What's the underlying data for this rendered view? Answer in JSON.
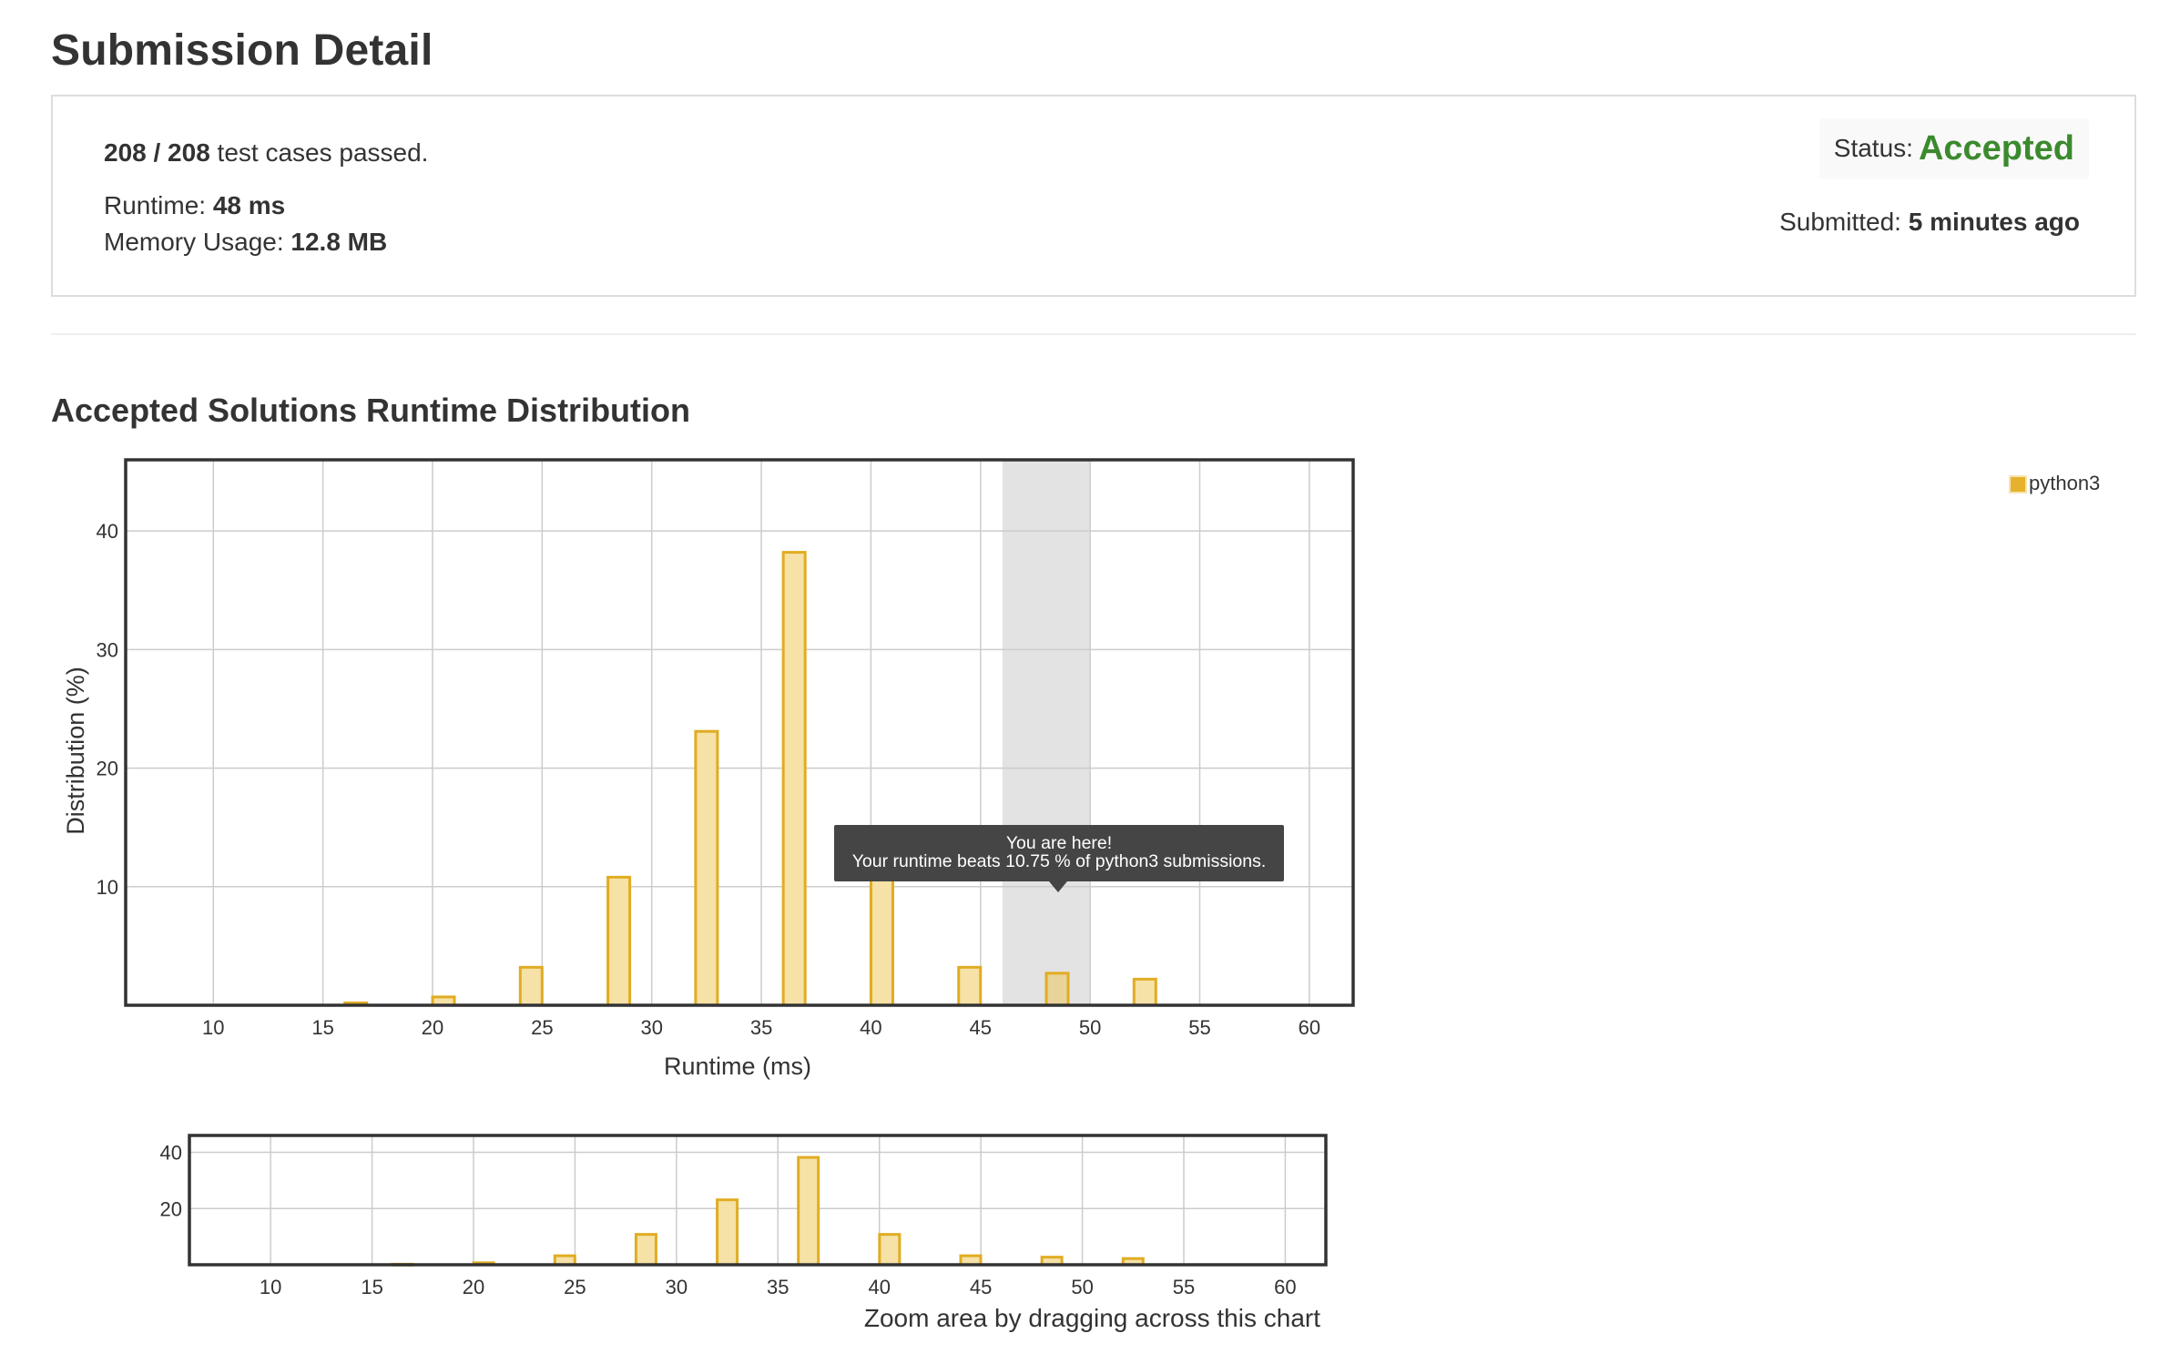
{
  "page": {
    "title": "Submission Detail"
  },
  "detail": {
    "cases_bold": "208 / 208",
    "cases_text": " test cases passed.",
    "runtime_label": "Runtime: ",
    "runtime_value": "48 ms",
    "memory_label": "Memory Usage: ",
    "memory_value": "12.8 MB",
    "status_label": "Status:",
    "status_value": "Accepted",
    "submitted_label": "Submitted: ",
    "submitted_value": "5 minutes ago"
  },
  "section": {
    "title": "Accepted Solutions Runtime Distribution"
  },
  "tooltip": {
    "line1": "You are here!",
    "line2": "Your runtime beats 10.75 % of python3 submissions."
  },
  "zoom_hint": "Zoom area by dragging across this chart",
  "colors": {
    "bar_fill": "#f6e1a6",
    "bar_stroke": "#e0ac22",
    "accepted": "#3b8a2e",
    "highlight": "#e3e3e3"
  },
  "chart_data": [
    {
      "type": "bar",
      "title": "",
      "xlabel": "Runtime (ms)",
      "ylabel": "Distribution (%)",
      "x": [
        16.5,
        20.5,
        24.5,
        28.5,
        32.5,
        36.5,
        40.5,
        44.5,
        48.5,
        52.5
      ],
      "series": [
        {
          "name": "python3",
          "values": [
            0.2,
            0.7,
            3.2,
            10.8,
            23.1,
            38.2,
            10.8,
            3.2,
            2.7,
            2.2
          ]
        }
      ],
      "xlim": [
        6,
        62
      ],
      "ylim": [
        0,
        46
      ],
      "xticks": [
        10,
        15,
        20,
        25,
        30,
        35,
        40,
        45,
        50,
        55,
        60
      ],
      "yticks": [
        10,
        20,
        30,
        40
      ],
      "highlight_range": [
        46,
        50
      ],
      "grid": true,
      "legend": "top-right"
    },
    {
      "type": "bar",
      "title": "",
      "xlabel": "",
      "ylabel": "",
      "x": [
        16.5,
        20.5,
        24.5,
        28.5,
        32.5,
        36.5,
        40.5,
        44.5,
        48.5,
        52.5
      ],
      "series": [
        {
          "name": "python3",
          "values": [
            0.2,
            0.7,
            3.2,
            10.8,
            23.1,
            38.2,
            10.8,
            3.2,
            2.7,
            2.2
          ]
        }
      ],
      "xlim": [
        6,
        62
      ],
      "ylim": [
        0,
        46
      ],
      "xticks": [
        10,
        15,
        20,
        25,
        30,
        35,
        40,
        45,
        50,
        55,
        60
      ],
      "yticks": [
        20,
        40
      ],
      "grid": true
    }
  ]
}
